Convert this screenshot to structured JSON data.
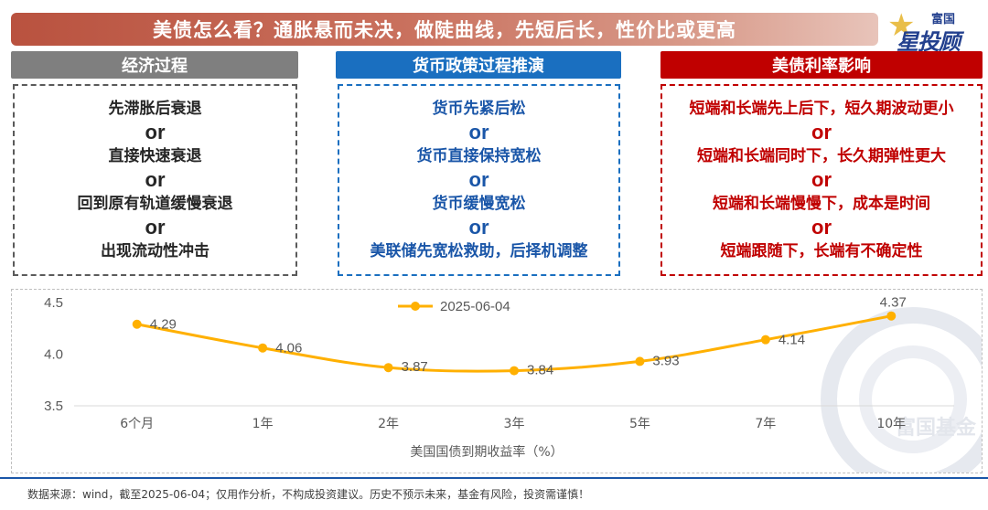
{
  "title": "美债怎么看？通胀悬而未决，做陡曲线，先短后长，性价比或更高",
  "logo": {
    "line1": "富国",
    "line2": "星投顾"
  },
  "columns": [
    {
      "header": "经济过程",
      "items": [
        "先滞胀后衰退",
        "or",
        "直接快速衰退",
        "or",
        "回到原有轨道缓慢衰退",
        "or",
        "出现流动性冲击"
      ]
    },
    {
      "header": "货币政策过程推演",
      "items": [
        "货币先紧后松",
        "or",
        "货币直接保持宽松",
        "or",
        "货币缓慢宽松",
        "or",
        "美联储先宽松救助，后择机调整"
      ]
    },
    {
      "header": "美债利率影响",
      "items": [
        "短端和长端先上后下，短久期波动更小",
        "or",
        "短端和长端同时下，长久期弹性更大",
        "or",
        "短端和长端慢慢下，成本是时间",
        "or",
        "短端跟随下，长端有不确定性"
      ]
    }
  ],
  "chart_data": {
    "type": "line",
    "categories": [
      "6个月",
      "1年",
      "2年",
      "3年",
      "5年",
      "7年",
      "10年"
    ],
    "series": [
      {
        "name": "2025-06-04",
        "values": [
          4.29,
          4.06,
          3.87,
          3.84,
          3.93,
          4.14,
          4.37
        ],
        "color": "#ffb000"
      }
    ],
    "data_labels": [
      "4.29",
      "4.06",
      "3.87",
      "3.84",
      "3.93",
      "4.14",
      "4.37"
    ],
    "xlabel": "美国国债到期收益率（%）",
    "ylabel": "",
    "ylim": [
      3.5,
      4.5
    ],
    "yticks": [
      "3.5",
      "4.0",
      "4.5"
    ],
    "legend_position": "top-center",
    "grid": false
  },
  "watermark": "富国基金",
  "footnote": "数据来源：wind，截至2025-06-04；仅用作分析，不构成投资建议。历史不预示未来，基金有风险，投资需谨慎！"
}
